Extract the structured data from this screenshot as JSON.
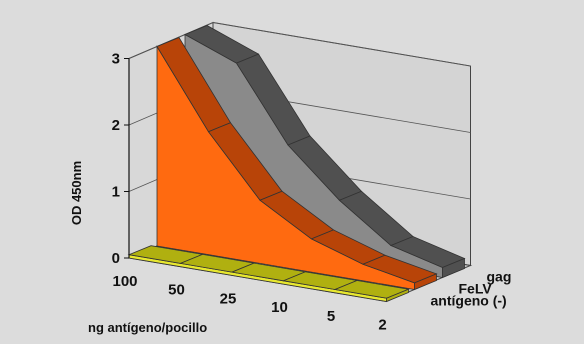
{
  "chart_data": {
    "type": "area",
    "variant": "3d-ribbon",
    "title": "",
    "xlabel": "ng antígeno/pocillo",
    "ylabel": "OD 450nm",
    "categories": [
      "100",
      "50",
      "25",
      "10",
      "5",
      "2"
    ],
    "ylim": [
      0,
      3
    ],
    "yticks": [
      "0",
      "1",
      "2",
      "3"
    ],
    "grid": true,
    "legend": "none (series labelled on depth axis)",
    "series": [
      {
        "name": "antígeno (-)",
        "values": [
          0.05,
          0.05,
          0.05,
          0.05,
          0.05,
          0.05
        ],
        "color": "#e8e830",
        "side_color": "#b0b010"
      },
      {
        "name": "FeLV",
        "values": [
          3.0,
          1.85,
          0.95,
          0.5,
          0.25,
          0.1
        ],
        "color": "#ff6a10",
        "side_color": "#b84408"
      },
      {
        "name": "gag",
        "values": [
          3.0,
          2.7,
          1.6,
          0.9,
          0.35,
          0.15
        ],
        "color": "#8a8a8a",
        "side_color": "#505050"
      }
    ],
    "colors": {
      "background": "#dcdcdc",
      "floor": "#c8c8c8",
      "gridline": "#ffffff"
    }
  }
}
